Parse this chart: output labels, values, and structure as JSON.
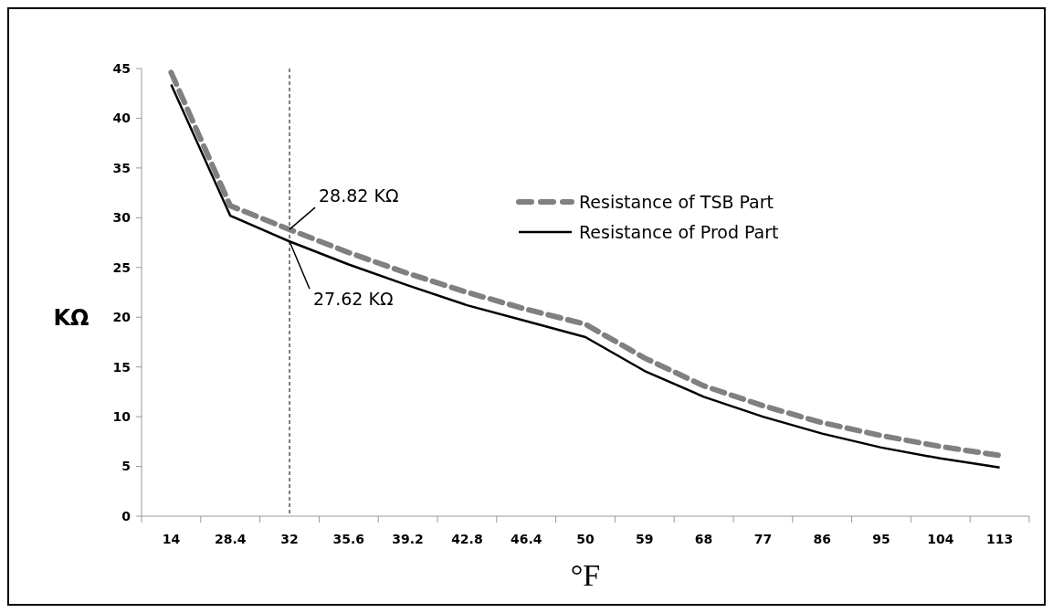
{
  "chart_data": {
    "type": "line",
    "xlabel": "°F",
    "ylabel": "KΩ",
    "categories": [
      "14",
      "28.4",
      "32",
      "35.6",
      "39.2",
      "42.8",
      "46.4",
      "50",
      "59",
      "68",
      "77",
      "86",
      "95",
      "104",
      "113"
    ],
    "series": [
      {
        "name": "Resistance of TSB Part",
        "color": "#808080",
        "line_style": "dashed",
        "values": [
          44.6,
          31.2,
          28.82,
          26.5,
          24.4,
          22.5,
          20.8,
          19.3,
          15.9,
          13.1,
          11.1,
          9.4,
          8.1,
          7.0,
          6.1
        ]
      },
      {
        "name": "Resistance of Prod Part",
        "color": "#000000",
        "line_style": "solid",
        "values": [
          43.4,
          30.2,
          27.62,
          25.3,
          23.2,
          21.2,
          19.6,
          18.0,
          14.6,
          12.0,
          10.0,
          8.3,
          6.9,
          5.8,
          4.9
        ]
      }
    ],
    "ylim": [
      0,
      45
    ],
    "yticks": [
      0,
      5,
      10,
      15,
      20,
      25,
      30,
      35,
      40,
      45
    ],
    "ref_lines": [
      {
        "axis": "x",
        "value": "32",
        "color": "#000000",
        "line_style": "dashed"
      }
    ],
    "annotations": [
      {
        "text": "28.82 KΩ",
        "x": "32",
        "y": 28.82
      },
      {
        "text": "27.62 KΩ",
        "x": "32",
        "y": 27.62
      }
    ],
    "legend": "top right",
    "grid": false,
    "marker": "none"
  }
}
